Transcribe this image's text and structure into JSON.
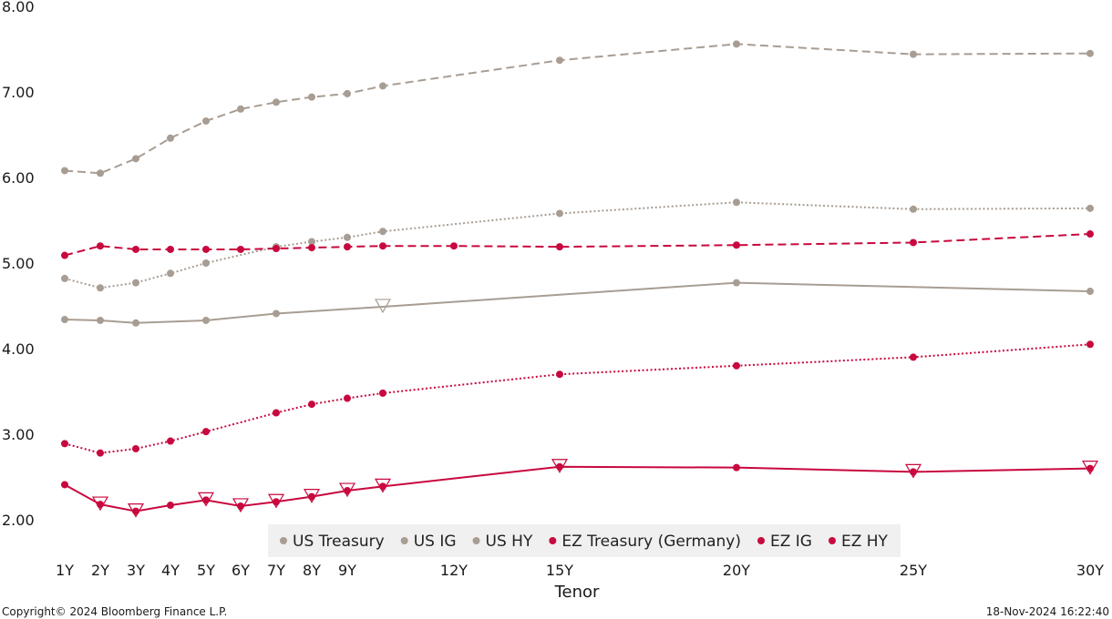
{
  "chart_data": {
    "type": "line",
    "xlabel": "Tenor",
    "x_tick_labels": [
      "1Y",
      "2Y",
      "3Y",
      "4Y",
      "5Y",
      "6Y",
      "7Y",
      "8Y",
      "9Y",
      "12Y",
      "15Y",
      "20Y",
      "25Y",
      "30Y"
    ],
    "x_tick_values": [
      1,
      2,
      3,
      4,
      5,
      6,
      7,
      8,
      9,
      12,
      15,
      20,
      25,
      30
    ],
    "y_tick_labels": [
      "2.00",
      "3.00",
      "4.00",
      "5.00",
      "6.00",
      "7.00",
      "8.00"
    ],
    "y_tick_values": [
      2,
      3,
      4,
      5,
      6,
      7,
      8
    ],
    "ylim": [
      2,
      8
    ],
    "grid": false,
    "legend_position": "bottom-center",
    "series": [
      {
        "name": "US Treasury",
        "color": "#a89d93",
        "dash": "solid",
        "points": [
          [
            1,
            4.34
          ],
          [
            2,
            4.33
          ],
          [
            3,
            4.3
          ],
          [
            5,
            4.33
          ],
          [
            7,
            4.41
          ],
          [
            10,
            4.49
          ],
          [
            20,
            4.77
          ],
          [
            30,
            4.67
          ]
        ],
        "marker_x": [
          1,
          2,
          3,
          5,
          7,
          20,
          30
        ],
        "triangle_x": [
          10
        ]
      },
      {
        "name": "US IG",
        "color": "#a89d93",
        "dash": "dotted",
        "points": [
          [
            1,
            4.82
          ],
          [
            2,
            4.71
          ],
          [
            3,
            4.77
          ],
          [
            4,
            4.88
          ],
          [
            5,
            5.0
          ],
          [
            7,
            5.19
          ],
          [
            8,
            5.25
          ],
          [
            9,
            5.3
          ],
          [
            10,
            5.37
          ],
          [
            15,
            5.58
          ],
          [
            20,
            5.71
          ],
          [
            25,
            5.63
          ],
          [
            30,
            5.64
          ]
        ],
        "marker_x": [
          1,
          2,
          3,
          4,
          5,
          7,
          8,
          9,
          10,
          15,
          20,
          25,
          30
        ],
        "triangle_x": []
      },
      {
        "name": "US HY",
        "color": "#a89d93",
        "dash": "dashed",
        "points": [
          [
            1,
            6.08
          ],
          [
            2,
            6.05
          ],
          [
            3,
            6.22
          ],
          [
            4,
            6.46
          ],
          [
            5,
            6.66
          ],
          [
            6,
            6.8
          ],
          [
            7,
            6.88
          ],
          [
            8,
            6.94
          ],
          [
            9,
            6.98
          ],
          [
            10,
            7.07
          ],
          [
            15,
            7.37
          ],
          [
            20,
            7.56
          ],
          [
            25,
            7.44
          ],
          [
            30,
            7.45
          ]
        ],
        "marker_x": [
          1,
          2,
          3,
          4,
          5,
          6,
          7,
          8,
          9,
          10,
          15,
          20,
          25,
          30
        ],
        "triangle_x": []
      },
      {
        "name": "EZ Treasury (Germany)",
        "color": "#c8083e",
        "dash": "solid",
        "points": [
          [
            1,
            2.41
          ],
          [
            2,
            2.18
          ],
          [
            3,
            2.1
          ],
          [
            4,
            2.17
          ],
          [
            5,
            2.23
          ],
          [
            6,
            2.16
          ],
          [
            7,
            2.21
          ],
          [
            8,
            2.27
          ],
          [
            9,
            2.34
          ],
          [
            10,
            2.39
          ],
          [
            15,
            2.62
          ],
          [
            20,
            2.61
          ],
          [
            25,
            2.56
          ],
          [
            30,
            2.6
          ]
        ],
        "marker_x": [
          1,
          2,
          3,
          4,
          5,
          6,
          7,
          8,
          9,
          10,
          15,
          20,
          25,
          30
        ],
        "triangle_x": [
          2,
          3,
          5,
          6,
          7,
          8,
          9,
          10,
          15,
          25,
          30
        ]
      },
      {
        "name": "EZ IG",
        "color": "#c8083e",
        "dash": "dotted",
        "points": [
          [
            1,
            2.89
          ],
          [
            2,
            2.78
          ],
          [
            3,
            2.83
          ],
          [
            4,
            2.92
          ],
          [
            5,
            3.03
          ],
          [
            7,
            3.25
          ],
          [
            8,
            3.35
          ],
          [
            9,
            3.42
          ],
          [
            10,
            3.48
          ],
          [
            15,
            3.7
          ],
          [
            20,
            3.8
          ],
          [
            25,
            3.9
          ],
          [
            30,
            4.05
          ]
        ],
        "marker_x": [
          1,
          2,
          3,
          4,
          5,
          7,
          8,
          9,
          10,
          15,
          20,
          25,
          30
        ],
        "triangle_x": []
      },
      {
        "name": "EZ HY",
        "color": "#c8083e",
        "dash": "dashed",
        "points": [
          [
            1,
            5.09
          ],
          [
            2,
            5.2
          ],
          [
            3,
            5.16
          ],
          [
            4,
            5.16
          ],
          [
            5,
            5.16
          ],
          [
            6,
            5.16
          ],
          [
            7,
            5.17
          ],
          [
            8,
            5.18
          ],
          [
            9,
            5.19
          ],
          [
            10,
            5.2
          ],
          [
            12,
            5.2
          ],
          [
            15,
            5.19
          ],
          [
            20,
            5.21
          ],
          [
            25,
            5.24
          ],
          [
            30,
            5.34
          ]
        ],
        "marker_x": [
          1,
          2,
          3,
          4,
          5,
          6,
          7,
          8,
          9,
          10,
          12,
          15,
          20,
          25,
          30
        ],
        "triangle_x": []
      }
    ]
  },
  "footer": {
    "copyright": "Copyright© 2024 Bloomberg Finance L.P.",
    "timestamp": "18-Nov-2024 16:22:40"
  }
}
